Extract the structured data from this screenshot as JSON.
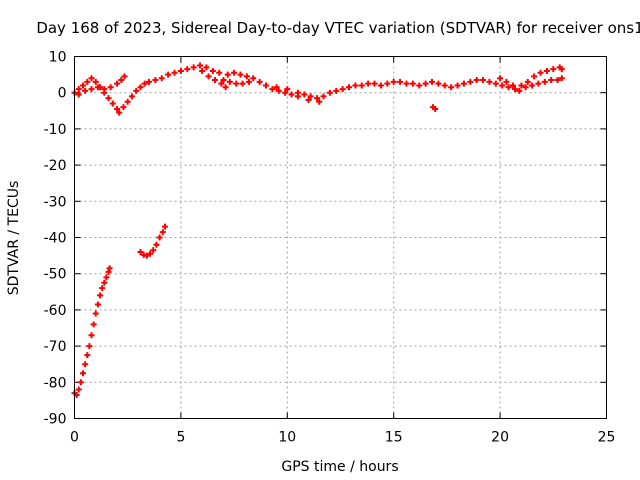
{
  "chart_data": {
    "type": "scatter",
    "title": "Day 168 of 2023, Sidereal Day-to-day VTEC variation (SDTVAR) for receiver ons1",
    "xlabel": "GPS time / hours",
    "ylabel": "SDTVAR / TECUs",
    "xlim": [
      0,
      25
    ],
    "ylim": [
      -90,
      10
    ],
    "xticks": [
      0,
      5,
      10,
      15,
      20,
      25
    ],
    "yticks": [
      10,
      0,
      -10,
      -20,
      -30,
      -40,
      -50,
      -60,
      -70,
      -80,
      -90
    ],
    "grid": true,
    "marker": "plus",
    "color": "#ff0000",
    "series": [
      {
        "name": "SDTVAR",
        "points": [
          [
            0.0,
            -83.0
          ],
          [
            0.1,
            -83.5
          ],
          [
            0.2,
            -82.0
          ],
          [
            0.3,
            -80.0
          ],
          [
            0.4,
            -77.5
          ],
          [
            0.5,
            -75.0
          ],
          [
            0.6,
            -72.5
          ],
          [
            0.7,
            -70.0
          ],
          [
            0.8,
            -67.0
          ],
          [
            0.9,
            -64.0
          ],
          [
            1.0,
            -61.0
          ],
          [
            1.1,
            -58.5
          ],
          [
            1.2,
            -56.0
          ],
          [
            1.3,
            -54.0
          ],
          [
            1.4,
            -52.5
          ],
          [
            1.5,
            -51.0
          ],
          [
            1.6,
            -49.5
          ],
          [
            1.65,
            -48.5
          ],
          [
            3.1,
            -44.0
          ],
          [
            3.25,
            -44.8
          ],
          [
            3.4,
            -45.0
          ],
          [
            3.55,
            -44.5
          ],
          [
            3.7,
            -43.5
          ],
          [
            3.85,
            -42.0
          ],
          [
            4.0,
            -40.0
          ],
          [
            4.15,
            -38.5
          ],
          [
            4.25,
            -37.0
          ],
          [
            0.0,
            0.0
          ],
          [
            0.2,
            1.0
          ],
          [
            0.4,
            2.0
          ],
          [
            0.6,
            3.0
          ],
          [
            0.8,
            4.0
          ],
          [
            1.0,
            3.0
          ],
          [
            1.2,
            1.5
          ],
          [
            1.4,
            0.0
          ],
          [
            1.6,
            -1.5
          ],
          [
            1.8,
            -3.0
          ],
          [
            2.0,
            -4.5
          ],
          [
            2.1,
            -5.5
          ],
          [
            2.3,
            -4.0
          ],
          [
            2.5,
            -2.5
          ],
          [
            2.7,
            -1.0
          ],
          [
            2.9,
            0.5
          ],
          [
            3.1,
            1.5
          ],
          [
            3.3,
            2.5
          ],
          [
            0.2,
            -0.5
          ],
          [
            0.5,
            0.5
          ],
          [
            0.8,
            1.0
          ],
          [
            1.1,
            1.5
          ],
          [
            1.4,
            1.0
          ],
          [
            1.7,
            1.5
          ],
          [
            2.0,
            2.5
          ],
          [
            2.2,
            3.5
          ],
          [
            2.35,
            4.5
          ],
          [
            3.5,
            3.0
          ],
          [
            3.8,
            3.5
          ],
          [
            4.1,
            4.0
          ],
          [
            4.4,
            5.0
          ],
          [
            4.7,
            5.5
          ],
          [
            5.0,
            6.0
          ],
          [
            5.3,
            6.5
          ],
          [
            5.6,
            7.0
          ],
          [
            5.9,
            7.5
          ],
          [
            6.2,
            7.0
          ],
          [
            6.5,
            6.0
          ],
          [
            6.8,
            5.5
          ],
          [
            6.0,
            6.0
          ],
          [
            6.3,
            4.5
          ],
          [
            6.6,
            3.5
          ],
          [
            6.9,
            2.5
          ],
          [
            7.1,
            1.5
          ],
          [
            7.2,
            5.0
          ],
          [
            7.5,
            5.5
          ],
          [
            7.8,
            5.0
          ],
          [
            8.1,
            4.5
          ],
          [
            8.4,
            4.0
          ],
          [
            8.7,
            3.0
          ],
          [
            7.0,
            3.5
          ],
          [
            7.3,
            3.0
          ],
          [
            7.6,
            2.5
          ],
          [
            7.9,
            2.5
          ],
          [
            8.2,
            3.0
          ],
          [
            9.0,
            2.0
          ],
          [
            9.3,
            1.0
          ],
          [
            9.6,
            0.5
          ],
          [
            9.9,
            0.0
          ],
          [
            10.2,
            -0.5
          ],
          [
            10.5,
            0.0
          ],
          [
            10.8,
            -0.5
          ],
          [
            11.1,
            -1.0
          ],
          [
            11.4,
            -1.5
          ],
          [
            11.7,
            -1.0
          ],
          [
            12.0,
            0.0
          ],
          [
            9.5,
            1.5
          ],
          [
            10.0,
            1.0
          ],
          [
            10.5,
            -1.0
          ],
          [
            11.0,
            -2.0
          ],
          [
            11.5,
            -2.5
          ],
          [
            12.3,
            0.5
          ],
          [
            12.6,
            1.0
          ],
          [
            12.9,
            1.5
          ],
          [
            13.2,
            2.0
          ],
          [
            13.5,
            2.0
          ],
          [
            13.8,
            2.5
          ],
          [
            14.1,
            2.5
          ],
          [
            14.4,
            2.0
          ],
          [
            14.7,
            2.5
          ],
          [
            15.0,
            3.0
          ],
          [
            15.3,
            3.0
          ],
          [
            15.6,
            2.5
          ],
          [
            15.9,
            2.5
          ],
          [
            16.2,
            2.0
          ],
          [
            16.5,
            2.5
          ],
          [
            16.8,
            3.0
          ],
          [
            17.1,
            2.5
          ],
          [
            17.4,
            2.0
          ],
          [
            17.7,
            1.5
          ],
          [
            18.0,
            2.0
          ],
          [
            18.3,
            2.5
          ],
          [
            18.6,
            3.0
          ],
          [
            18.9,
            3.5
          ],
          [
            19.2,
            3.5
          ],
          [
            19.5,
            3.0
          ],
          [
            19.8,
            2.5
          ],
          [
            20.1,
            2.0
          ],
          [
            20.4,
            1.5
          ],
          [
            20.7,
            1.0
          ],
          [
            21.0,
            2.0
          ],
          [
            21.3,
            3.0
          ],
          [
            21.6,
            4.5
          ],
          [
            21.9,
            5.5
          ],
          [
            22.2,
            6.0
          ],
          [
            22.5,
            6.5
          ],
          [
            22.8,
            7.0
          ],
          [
            22.9,
            6.5
          ],
          [
            20.0,
            4.0
          ],
          [
            20.3,
            3.0
          ],
          [
            20.6,
            2.0
          ],
          [
            20.9,
            0.5
          ],
          [
            21.2,
            1.5
          ],
          [
            21.5,
            2.0
          ],
          [
            21.8,
            2.5
          ],
          [
            22.1,
            3.0
          ],
          [
            22.4,
            3.5
          ],
          [
            22.7,
            3.5
          ],
          [
            22.9,
            4.0
          ],
          [
            16.85,
            -4.0
          ],
          [
            16.95,
            -4.5
          ]
        ]
      }
    ]
  }
}
